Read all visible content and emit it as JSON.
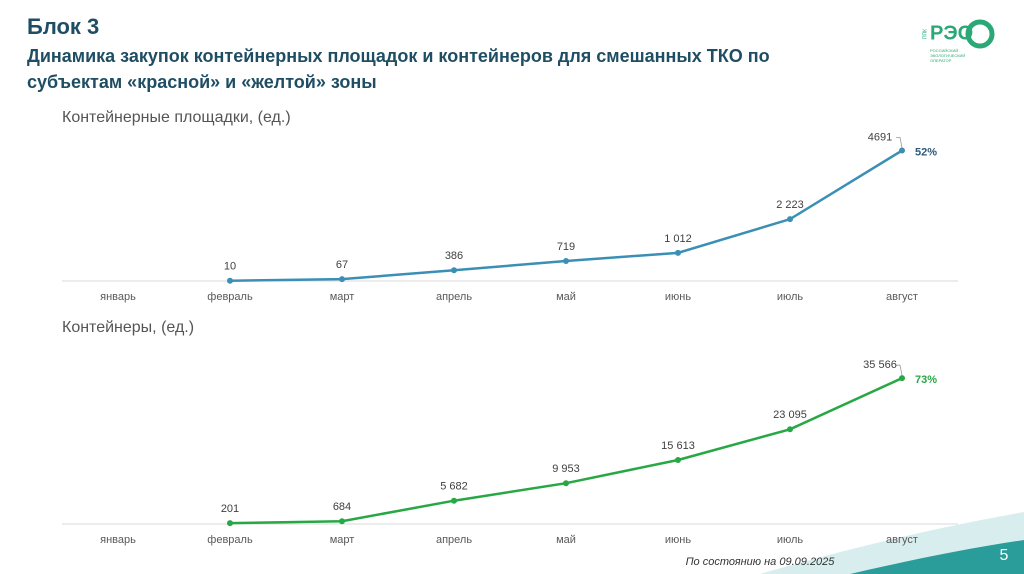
{
  "header": {
    "block": "Блок 3",
    "subtitle": [
      "Динамика закупок контейнерных площадок и контейнеров для смешанных ТКО по",
      "субъектам «красной» и «желтой» зоны"
    ]
  },
  "logo": {
    "abbr": "ППК",
    "name": "РЭО",
    "full": [
      "РОССИЙСКИЙ",
      "ЭКОЛОГИЧЕСКИЙ",
      "ОПЕРАТОР"
    ]
  },
  "chart_data": [
    {
      "type": "line",
      "title": "Контейнерные площадки, (ед.)",
      "categories": [
        "январь",
        "февраль",
        "март",
        "апрель",
        "май",
        "июнь",
        "июль",
        "август"
      ],
      "values": [
        null,
        10,
        67,
        386,
        719,
        1012,
        2223,
        4691
      ],
      "value_labels": [
        null,
        "10",
        "67",
        "386",
        "719",
        "1 012",
        "2 223",
        "4691"
      ],
      "color": "#3b8fb5",
      "ylim": [
        0,
        5500
      ],
      "annotation": "52%",
      "annotation_color": "#2d5b7c"
    },
    {
      "type": "line",
      "title": "Контейнеры, (ед.)",
      "categories": [
        "январь",
        "февраль",
        "март",
        "апрель",
        "май",
        "июнь",
        "июль",
        "август"
      ],
      "values": [
        null,
        201,
        684,
        5682,
        9953,
        15613,
        23095,
        35566
      ],
      "value_labels": [
        null,
        "201",
        "684",
        "5 682",
        "9 953",
        "15 613",
        "23 095",
        "35 566"
      ],
      "color": "#28a745",
      "ylim": [
        0,
        40000
      ],
      "annotation": "73%",
      "annotation_color": "#28a745"
    }
  ],
  "footer": {
    "date_note": "По состоянию на  09.09.2025",
    "page": "5"
  }
}
